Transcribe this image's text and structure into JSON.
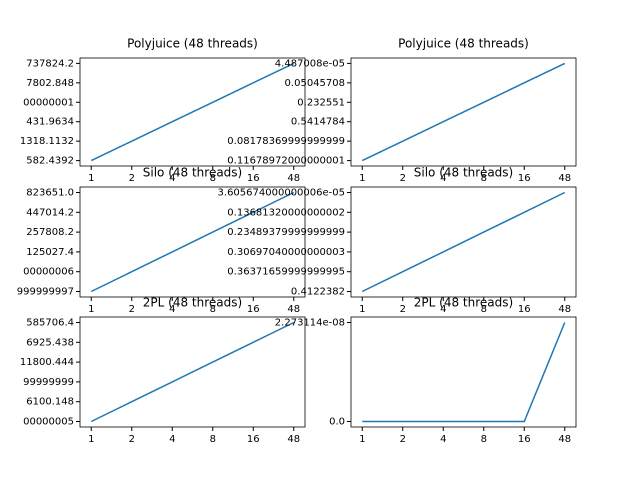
{
  "chart_data": [
    {
      "type": "line",
      "title": "Polyjuice (48 threads)",
      "categories": [
        "1",
        "2",
        "4",
        "8",
        "16",
        "48"
      ],
      "values": [
        "582.4392",
        "1318.1132",
        "431.9634",
        "00000001",
        "7802.848",
        "737824.2"
      ],
      "color": "#1f77b4"
    },
    {
      "type": "line",
      "title": "Polyjuice (48 threads)",
      "categories": [
        "1",
        "2",
        "4",
        "8",
        "16",
        "48"
      ],
      "values": [
        "0.11678972000000001",
        "0.08178369999999999",
        "0.5414784",
        "0.232551",
        "0.05045708",
        "4.487008e-05"
      ],
      "color": "#1f77b4"
    },
    {
      "type": "line",
      "title": "Silo (48 threads)",
      "categories": [
        "1",
        "2",
        "4",
        "8",
        "16",
        "48"
      ],
      "values": [
        "999999997",
        "00000006",
        "125027.4",
        "257808.2",
        "447014.2",
        "823651.0"
      ],
      "color": "#1f77b4"
    },
    {
      "type": "line",
      "title": "Silo (48 threads)",
      "categories": [
        "1",
        "2",
        "4",
        "8",
        "16",
        "48"
      ],
      "values": [
        "0.4122382",
        "0.36371659999999995",
        "0.30697040000000003",
        "0.23489379999999999",
        "0.13681320000000002",
        "3.605674000000006e-05"
      ],
      "color": "#1f77b4"
    },
    {
      "type": "line",
      "title": "2PL (48 threads)",
      "categories": [
        "1",
        "2",
        "4",
        "8",
        "16",
        "48"
      ],
      "values": [
        "00000005",
        "6100.148",
        "99999999",
        "11800.444",
        "6925.438",
        "585706.4"
      ],
      "color": "#1f77b4"
    },
    {
      "type": "line",
      "title": "2PL (48 threads)",
      "categories": [
        "1",
        "2",
        "4",
        "8",
        "16",
        "48"
      ],
      "values": [
        "0.0",
        "0.0",
        "0.0",
        "0.0",
        "0.0",
        "2.273114e-08"
      ],
      "color": "#1f77b4"
    }
  ]
}
